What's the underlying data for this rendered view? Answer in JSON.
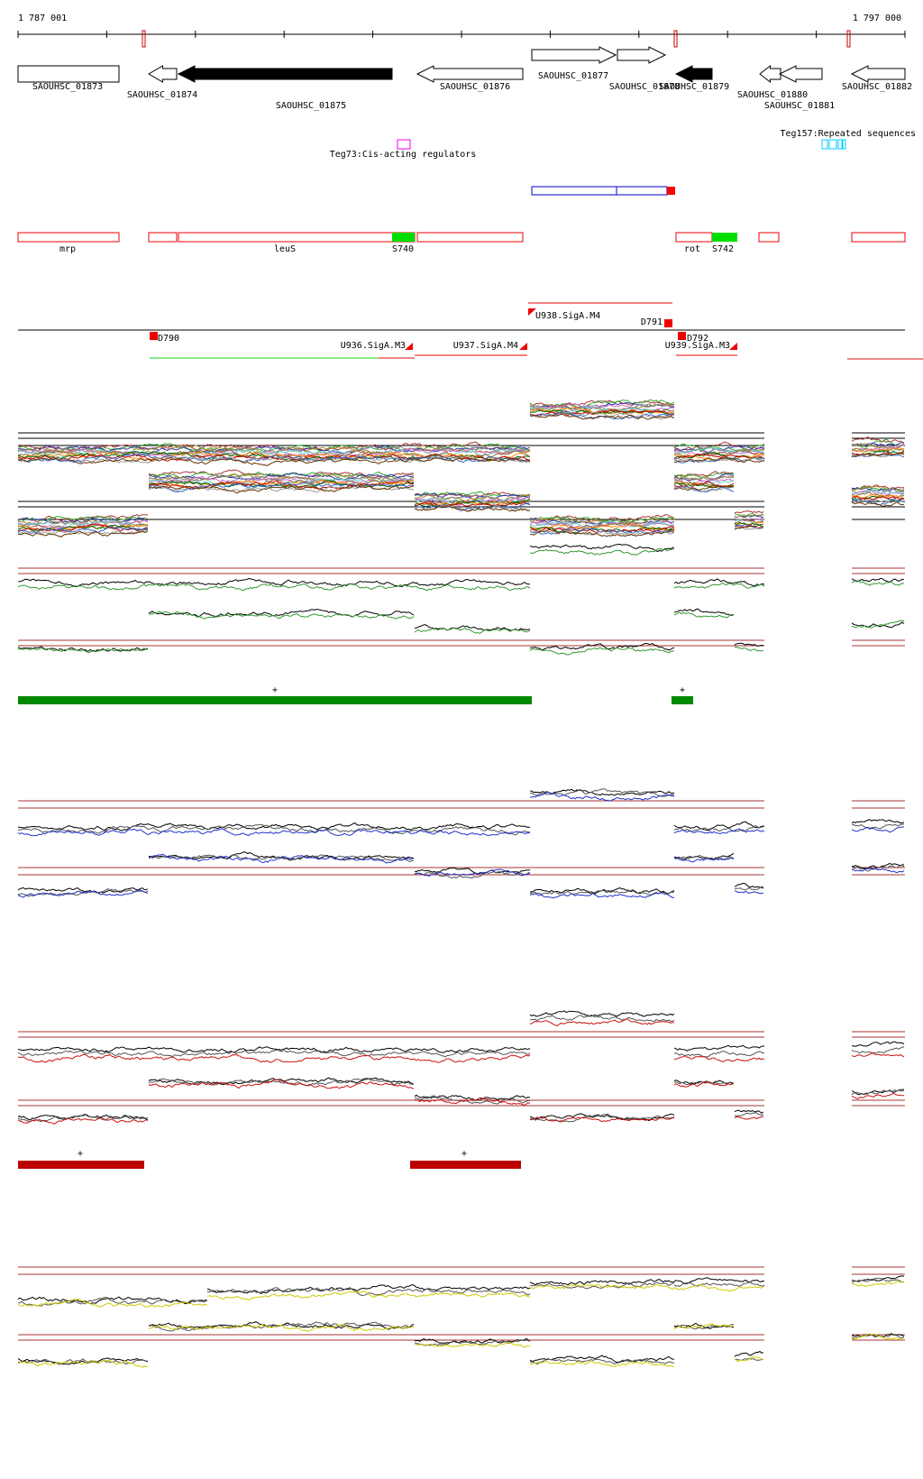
{
  "ruler": {
    "start": "1 787 001",
    "end": "1 797 000"
  },
  "genes": [
    "SAOUHSC_01873",
    "SAOUHSC_01874",
    "SAOUHSC_01875",
    "SAOUHSC_01876",
    "SAOUHSC_01877",
    "SAOUHSC_01878",
    "SAOUHSC_01879",
    "SAOUHSC_01880",
    "SAOUHSC_01881",
    "SAOUHSC_01882"
  ],
  "regulators": [
    "Teg73:Cis-acting regulators",
    "Teg157:Repeated sequences"
  ],
  "regions": [
    "mrp",
    "leuS",
    "S740",
    "rot",
    "S742"
  ],
  "promoters": [
    "D790",
    "U936.SigA.M3",
    "U937.SigA.M4",
    "U938.SigA.M4",
    "D791",
    "D792",
    "U939.SigA.M3"
  ],
  "marks": [
    "+",
    "+",
    "+",
    "+"
  ]
}
